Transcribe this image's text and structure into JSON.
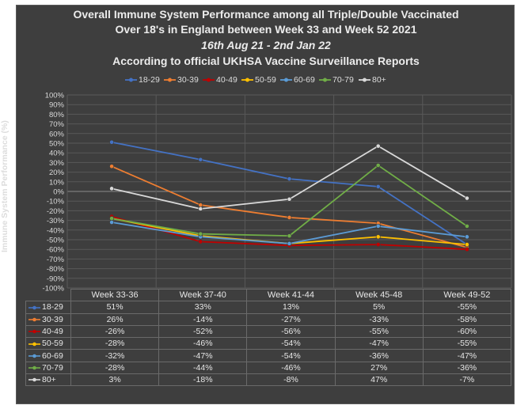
{
  "chart_data": {
    "type": "line",
    "title_lines": [
      "Overall Immune System Performance among all Triple/Double Vaccinated",
      "Over 18's in England between Week 33 and Week 52 2021",
      "16th Aug 21 - 2nd Jan 22",
      "According to official UKHSA Vaccine Surveillance Reports"
    ],
    "ylabel": "Immune System Performance (%)",
    "xlabel": "",
    "ylim": [
      -100,
      100
    ],
    "ytick_step": 10,
    "yticks": [
      "100%",
      "90%",
      "80%",
      "70%",
      "60%",
      "50%",
      "40%",
      "30%",
      "20%",
      "10%",
      "0%",
      "-10%",
      "-20%",
      "-30%",
      "-40%",
      "-50%",
      "-60%",
      "-70%",
      "-80%",
      "-90%",
      "-100%"
    ],
    "grid": true,
    "legend_position": "top",
    "categories": [
      "Week 33-36",
      "Week 37-40",
      "Week 41-44",
      "Week 45-48",
      "Week 49-52"
    ],
    "series": [
      {
        "name": "18-29",
        "color": "#4472c4",
        "values": [
          51,
          33,
          13,
          5,
          -55
        ],
        "labels": [
          "51%",
          "33%",
          "13%",
          "5%",
          "-55%"
        ]
      },
      {
        "name": "30-39",
        "color": "#ed7d31",
        "values": [
          26,
          -14,
          -27,
          -33,
          -58
        ],
        "labels": [
          "26%",
          "-14%",
          "-27%",
          "-33%",
          "-58%"
        ]
      },
      {
        "name": "40-49",
        "color": "#c00000",
        "values": [
          -26,
          -52,
          -56,
          -55,
          -60
        ],
        "labels": [
          "-26%",
          "-52%",
          "-56%",
          "-55%",
          "-60%"
        ]
      },
      {
        "name": "50-59",
        "color": "#ffc000",
        "values": [
          -28,
          -46,
          -54,
          -47,
          -55
        ],
        "labels": [
          "-28%",
          "-46%",
          "-54%",
          "-47%",
          "-55%"
        ]
      },
      {
        "name": "60-69",
        "color": "#5b9bd5",
        "values": [
          -32,
          -47,
          -54,
          -36,
          -47
        ],
        "labels": [
          "-32%",
          "-47%",
          "-54%",
          "-36%",
          "-47%"
        ]
      },
      {
        "name": "70-79",
        "color": "#70ad47",
        "values": [
          -28,
          -44,
          -46,
          27,
          -36
        ],
        "labels": [
          "-28%",
          "-44%",
          "-46%",
          "27%",
          "-36%"
        ]
      },
      {
        "name": "80+",
        "color": "#d9d9d9",
        "values": [
          3,
          -18,
          -8,
          47,
          -7
        ],
        "labels": [
          "3%",
          "-18%",
          "-8%",
          "47%",
          "-7%"
        ]
      }
    ]
  }
}
